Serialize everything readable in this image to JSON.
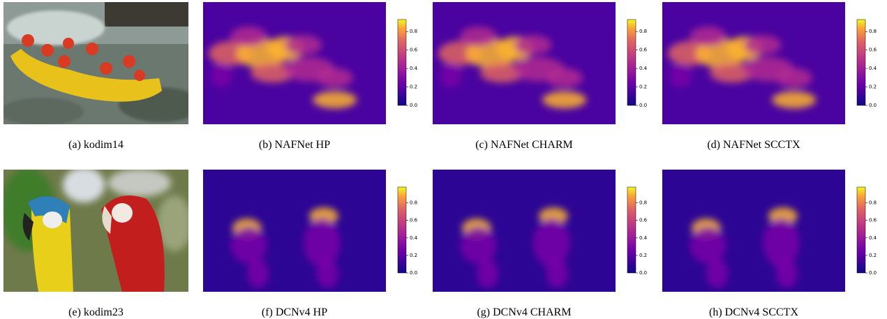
{
  "rows": [
    {
      "panels": [
        {
          "caption": "(a) kodim14"
        },
        {
          "caption": "(b) NAFNet HP",
          "colorbar": {
            "clim": [
              0,
              0.93
            ],
            "ticks": [
              {
                "value": 0,
                "label": "0.0"
              },
              0.2,
              0.4,
              0.6,
              0.8
            ]
          }
        },
        {
          "caption": "(c) NAFNet CHARM",
          "colorbar": {
            "clim": [
              0,
              0.93
            ],
            "ticks": [
              {
                "value": 0,
                "label": "0.0"
              },
              0.2,
              0.4,
              0.6,
              0.8
            ]
          }
        },
        {
          "caption": "(d) NAFNet SCCTX",
          "colorbar": {
            "clim": [
              0,
              0.93
            ],
            "ticks": [
              {
                "value": 0,
                "label": "0.0"
              },
              0.2,
              0.4,
              0.6,
              0.8
            ]
          }
        }
      ]
    },
    {
      "panels": [
        {
          "caption": "(e) kodim23"
        },
        {
          "caption": "(f) DCNv4 HP",
          "colorbar": {
            "clim": [
              0,
              0.98
            ],
            "ticks": [
              {
                "value": 0,
                "label": "0.0"
              },
              0.2,
              0.4,
              0.6,
              0.8
            ]
          }
        },
        {
          "caption": "(g) DCNv4 CHARM",
          "colorbar": {
            "clim": [
              0,
              0.98
            ],
            "ticks": [
              {
                "value": 0,
                "label": "0.0"
              },
              0.2,
              0.4,
              0.6,
              0.8
            ]
          }
        },
        {
          "caption": "(h) DCNv4 SCCTX",
          "colorbar": {
            "clim": [
              0,
              0.98
            ],
            "ticks": [
              {
                "value": 0,
                "label": "0.0"
              },
              0.2,
              0.4,
              0.6,
              0.8
            ]
          }
        }
      ]
    }
  ]
}
